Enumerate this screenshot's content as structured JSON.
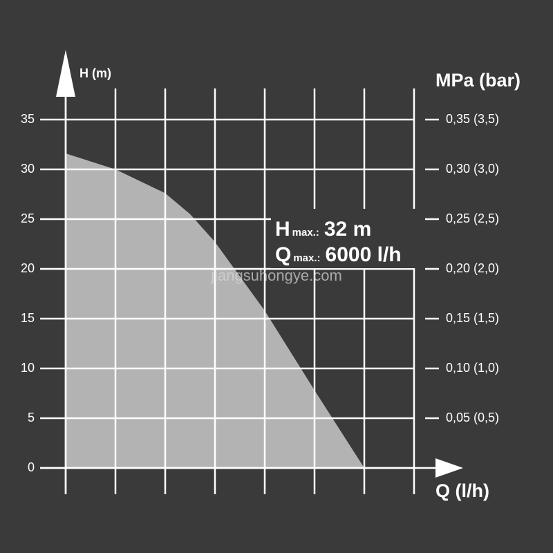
{
  "chart_data": {
    "type": "area",
    "y_axis_label": "H (m)",
    "y2_axis_label": "MPa (bar)",
    "x_axis_label": "Q (l/h)",
    "x": [
      0,
      1000,
      2000,
      2500,
      3000,
      4000,
      5000,
      6000
    ],
    "values": [
      31.6,
      30.0,
      27.6,
      25.5,
      22.7,
      15.8,
      7.8,
      0
    ],
    "color": "#b3b3b3",
    "xlim": [
      0,
      7000
    ],
    "xticks": [
      0,
      1000,
      2000,
      3000,
      4000,
      5000,
      6000,
      7000
    ],
    "xtick_labels": false,
    "ylim": [
      0,
      35
    ],
    "yticks": [
      0,
      5,
      10,
      15,
      20,
      25,
      30,
      35
    ],
    "y2lim": [
      0,
      0.35
    ],
    "y2ticks": [
      {
        "value": 0.05,
        "label": "0,05 (0,5)"
      },
      {
        "value": 0.1,
        "label": "0,10 (1,0)"
      },
      {
        "value": 0.15,
        "label": "0,15 (1,5)"
      },
      {
        "value": 0.2,
        "label": "0,20 (2,0)"
      },
      {
        "value": 0.25,
        "label": "0,25 (2,5)"
      },
      {
        "value": 0.3,
        "label": "0,30 (3,0)"
      },
      {
        "value": 0.35,
        "label": "0,35 (3,5)"
      }
    ],
    "grid": true,
    "annotations": [
      {
        "main": "H",
        "sub": "max.:",
        "value": "32 m"
      },
      {
        "main": "Q",
        "sub": "max.:",
        "value": "6000 l/h"
      }
    ],
    "watermark": "jiangsuhongye.com"
  }
}
